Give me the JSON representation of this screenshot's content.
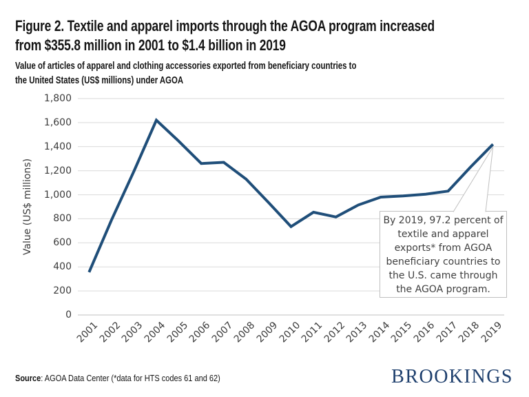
{
  "header": {
    "title_lines": [
      "Figure 2. Textile and apparel imports through the AGOA program increased",
      "from $355.8 million in 2001 to $1.4 billion in 2019"
    ],
    "subtitle_lines": [
      "Value of articles of apparel and clothing accessories exported from beneficiary countries to",
      "the United States (US$ millions) under AGOA"
    ]
  },
  "chart_data": {
    "type": "line",
    "x": [
      2001,
      2002,
      2003,
      2004,
      2005,
      2006,
      2007,
      2008,
      2009,
      2010,
      2011,
      2012,
      2013,
      2014,
      2015,
      2016,
      2017,
      2018,
      2019
    ],
    "values": [
      356,
      790,
      1195,
      1620,
      1445,
      1260,
      1270,
      1130,
      935,
      735,
      855,
      815,
      915,
      980,
      990,
      1005,
      1030,
      1230,
      1420
    ],
    "series_name": "Value of apparel and clothing accessories exported under AGOA",
    "ylabel": "Value (US$ millions)",
    "ylim": [
      0,
      1800
    ],
    "ytick_interval": 200,
    "ytick_labels": [
      "0",
      "200",
      "400",
      "600",
      "800",
      "1,000",
      "1,200",
      "1,400",
      "1,600",
      "1,800"
    ],
    "grid": true,
    "legend": "none",
    "line_color": "#1f4e79",
    "gridline_color": "#d9d9d9",
    "axis_line_color": "#bfbfbf",
    "annotation": {
      "text": "By 2019, 97.2 percent of textile and apparel exports* from AGOA beneficiary countries to the U.S. came through the AGOA program.",
      "lines": [
        "By 2019, 97.2 percent of",
        "textile and apparel",
        "exports* from AGOA",
        "beneficiary countries to",
        "the U.S. came through",
        "the AGOA program."
      ],
      "points_to_x": 2019
    }
  },
  "footer": {
    "source_label": "Source",
    "source_text": ": AGOA Data Center (*data for HTS codes 61 and 62)",
    "brand": "BROOKINGS"
  }
}
